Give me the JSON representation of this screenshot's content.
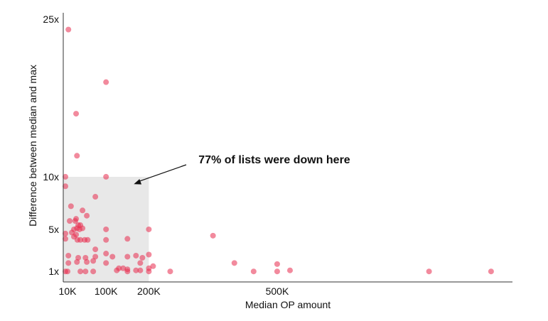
{
  "chart_data": {
    "type": "scatter",
    "xlabel": "Median OP amount",
    "ylabel": "Difference between median and max",
    "x_ticks": [
      {
        "value": 10000,
        "label": "10K"
      },
      {
        "value": 100000,
        "label": "100K"
      },
      {
        "value": 200000,
        "label": "200K"
      },
      {
        "value": 500000,
        "label": "500K"
      }
    ],
    "y_ticks": [
      {
        "value": 1,
        "label": "1x"
      },
      {
        "value": 5,
        "label": "5x"
      },
      {
        "value": 10,
        "label": "10x"
      },
      {
        "value": 25,
        "label": "25x"
      }
    ],
    "xlim": [
      0,
      1050000
    ],
    "ylim": [
      0,
      26
    ],
    "shaded_region": {
      "x": [
        0,
        200000
      ],
      "y": [
        0,
        10
      ],
      "color": "#e8e8e8"
    },
    "annotation": {
      "text": "77% of lists were down here",
      "points_to": {
        "x": 165000,
        "y": 9.3
      }
    },
    "point_color": "#e8294d",
    "points": [
      {
        "x": 12000,
        "y": 24
      },
      {
        "x": 100000,
        "y": 19
      },
      {
        "x": 30000,
        "y": 16
      },
      {
        "x": 32000,
        "y": 12
      },
      {
        "x": 5000,
        "y": 10
      },
      {
        "x": 100000,
        "y": 10
      },
      {
        "x": 5000,
        "y": 9.1
      },
      {
        "x": 75000,
        "y": 8.1
      },
      {
        "x": 18000,
        "y": 7.2
      },
      {
        "x": 45000,
        "y": 6.8
      },
      {
        "x": 55000,
        "y": 6.3
      },
      {
        "x": 30000,
        "y": 6
      },
      {
        "x": 15000,
        "y": 5.8
      },
      {
        "x": 28000,
        "y": 5.8
      },
      {
        "x": 35000,
        "y": 5.4
      },
      {
        "x": 40000,
        "y": 5.4
      },
      {
        "x": 45000,
        "y": 5.1
      },
      {
        "x": 32000,
        "y": 5.1
      },
      {
        "x": 25000,
        "y": 5
      },
      {
        "x": 38000,
        "y": 5
      },
      {
        "x": 100000,
        "y": 5
      },
      {
        "x": 200000,
        "y": 5
      },
      {
        "x": 5000,
        "y": 4.6
      },
      {
        "x": 20000,
        "y": 4.7
      },
      {
        "x": 30000,
        "y": 4.5
      },
      {
        "x": 25000,
        "y": 4.3
      },
      {
        "x": 350000,
        "y": 4.4
      },
      {
        "x": 5000,
        "y": 4.1
      },
      {
        "x": 33000,
        "y": 4
      },
      {
        "x": 40000,
        "y": 4
      },
      {
        "x": 50000,
        "y": 4
      },
      {
        "x": 57000,
        "y": 4
      },
      {
        "x": 100000,
        "y": 4
      },
      {
        "x": 150000,
        "y": 4.1
      },
      {
        "x": 75000,
        "y": 3.1
      },
      {
        "x": 100000,
        "y": 2.7
      },
      {
        "x": 200000,
        "y": 2.6
      },
      {
        "x": 12000,
        "y": 2.5
      },
      {
        "x": 75000,
        "y": 2.4
      },
      {
        "x": 115000,
        "y": 2.4
      },
      {
        "x": 150000,
        "y": 2.4
      },
      {
        "x": 170000,
        "y": 2.5
      },
      {
        "x": 185000,
        "y": 2.3
      },
      {
        "x": 35000,
        "y": 2.3
      },
      {
        "x": 52000,
        "y": 2.3
      },
      {
        "x": 12000,
        "y": 1.8
      },
      {
        "x": 32000,
        "y": 1.9
      },
      {
        "x": 55000,
        "y": 1.9
      },
      {
        "x": 70000,
        "y": 2
      },
      {
        "x": 100000,
        "y": 1.8
      },
      {
        "x": 180000,
        "y": 1.8
      },
      {
        "x": 400000,
        "y": 1.8
      },
      {
        "x": 500000,
        "y": 1.7
      },
      {
        "x": 210000,
        "y": 1.5
      },
      {
        "x": 130000,
        "y": 1.3
      },
      {
        "x": 140000,
        "y": 1.3
      },
      {
        "x": 150000,
        "y": 1.2
      },
      {
        "x": 200000,
        "y": 1.3
      },
      {
        "x": 125000,
        "y": 1.1
      },
      {
        "x": 170000,
        "y": 1.1
      },
      {
        "x": 180000,
        "y": 1.1
      },
      {
        "x": 530000,
        "y": 1.1
      },
      {
        "x": 5000,
        "y": 1
      },
      {
        "x": 10000,
        "y": 1
      },
      {
        "x": 40000,
        "y": 1
      },
      {
        "x": 52000,
        "y": 1
      },
      {
        "x": 70000,
        "y": 1
      },
      {
        "x": 150000,
        "y": 1
      },
      {
        "x": 200000,
        "y": 1
      },
      {
        "x": 250000,
        "y": 1
      },
      {
        "x": 445000,
        "y": 1
      },
      {
        "x": 500000,
        "y": 1
      },
      {
        "x": 855000,
        "y": 1
      },
      {
        "x": 1000000,
        "y": 1
      }
    ]
  }
}
